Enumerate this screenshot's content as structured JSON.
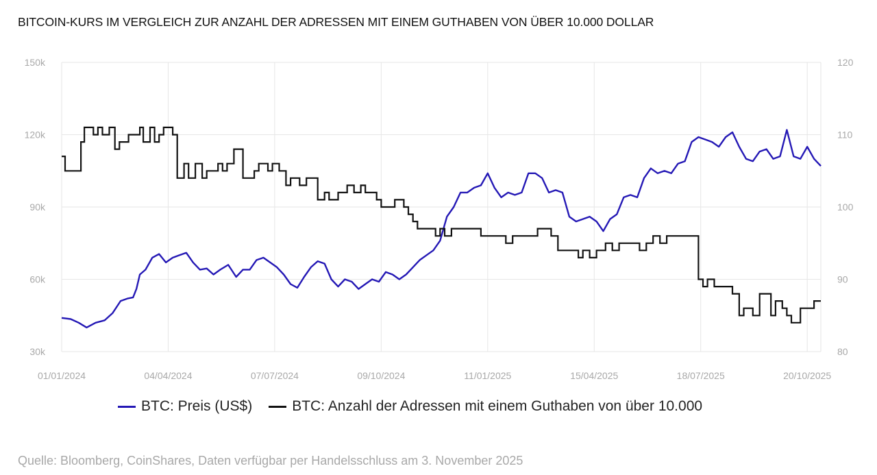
{
  "chart_data": {
    "type": "line",
    "title": "BITCOIN-KURS IM VERGLEICH ZUR ANZAHL DER ADRESSEN MIT EINEM GUTHABEN VON ÜBER 10.000 DOLLAR",
    "x_tick_labels": [
      "01/01/2024",
      "04/04/2024",
      "07/07/2024",
      "09/10/2024",
      "11/01/2025",
      "15/04/2025",
      "18/07/2025",
      "20/10/2025"
    ],
    "x_range_days": [
      0,
      670
    ],
    "x_tick_days": [
      0,
      94,
      188,
      282,
      376,
      470,
      564,
      658
    ],
    "y_left": {
      "min": 30000,
      "max": 150000,
      "ticks": [
        30000,
        60000,
        90000,
        120000,
        150000
      ],
      "tick_labels": [
        "30k",
        "60k",
        "90k",
        "120k",
        "150k"
      ]
    },
    "y_right": {
      "min": 80,
      "max": 120,
      "ticks": [
        80,
        90,
        100,
        110,
        120
      ],
      "tick_labels": [
        "80",
        "90",
        "100",
        "110",
        "120"
      ]
    },
    "grid": true,
    "series": [
      {
        "name": "BTC: Preis (US$)",
        "axis": "left",
        "color": "#2418b5",
        "x": [
          0,
          8,
          15,
          22,
          30,
          38,
          45,
          52,
          58,
          63,
          66,
          69,
          74,
          80,
          86,
          92,
          98,
          104,
          110,
          116,
          122,
          128,
          134,
          140,
          147,
          154,
          160,
          166,
          172,
          178,
          184,
          190,
          196,
          202,
          208,
          214,
          220,
          226,
          232,
          238,
          244,
          250,
          256,
          262,
          268,
          274,
          280,
          286,
          292,
          298,
          304,
          310,
          316,
          322,
          328,
          334,
          340,
          346,
          352,
          358,
          364,
          370,
          376,
          382,
          388,
          394,
          400,
          406,
          412,
          418,
          424,
          430,
          436,
          442,
          448,
          454,
          460,
          466,
          472,
          478,
          484,
          490,
          496,
          502,
          508,
          514,
          520,
          526,
          532,
          538,
          544,
          550,
          556,
          562,
          568,
          574,
          580,
          586,
          592,
          598,
          604,
          610,
          616,
          622,
          628,
          634,
          640,
          646,
          652,
          658,
          664,
          670
        ],
        "values": [
          44000,
          43500,
          42000,
          40000,
          42000,
          43000,
          46000,
          51000,
          52000,
          52500,
          56000,
          62000,
          64000,
          69000,
          70500,
          67000,
          69000,
          70000,
          71000,
          67000,
          64000,
          64500,
          62000,
          64000,
          66000,
          61000,
          64000,
          64000,
          68000,
          69000,
          67000,
          65000,
          62000,
          58000,
          56500,
          61000,
          65000,
          67500,
          66500,
          60000,
          57000,
          60000,
          59000,
          56000,
          58000,
          60000,
          59000,
          63000,
          62000,
          60000,
          62000,
          65000,
          68000,
          70000,
          72000,
          76000,
          86000,
          90000,
          96000,
          96000,
          98000,
          99000,
          104000,
          98000,
          94000,
          96000,
          95000,
          96000,
          104000,
          104000,
          102000,
          96000,
          97000,
          96000,
          86000,
          84000,
          85000,
          86000,
          84000,
          80000,
          85000,
          87000,
          94000,
          95000,
          94000,
          102000,
          106000,
          104000,
          105000,
          104000,
          108000,
          109000,
          117000,
          119000,
          118000,
          117000,
          115000,
          119000,
          121000,
          115000,
          110000,
          109000,
          113000,
          114000,
          110000,
          111000,
          122000,
          111000,
          110000,
          115000,
          110000,
          107000
        ]
      },
      {
        "name": "BTC: Anzahl der Adressen mit einem Guthaben von über 10.000",
        "axis": "right",
        "color": "#111111",
        "x": [
          0,
          3,
          14,
          17,
          20,
          28,
          32,
          36,
          42,
          47,
          51,
          55,
          59,
          65,
          69,
          72,
          78,
          82,
          86,
          90,
          94,
          98,
          102,
          108,
          112,
          118,
          124,
          128,
          132,
          138,
          142,
          146,
          150,
          152,
          160,
          164,
          170,
          174,
          178,
          182,
          186,
          192,
          198,
          202,
          208,
          210,
          216,
          222,
          226,
          232,
          236,
          240,
          244,
          252,
          258,
          264,
          268,
          272,
          278,
          282,
          286,
          290,
          294,
          298,
          302,
          306,
          310,
          314,
          318,
          324,
          330,
          334,
          338,
          344,
          350,
          360,
          366,
          370,
          376,
          382,
          388,
          392,
          398,
          404,
          410,
          416,
          420,
          426,
          432,
          438,
          444,
          450,
          456,
          460,
          466,
          472,
          476,
          480,
          486,
          492,
          498,
          504,
          510,
          516,
          522,
          528,
          534,
          540,
          546,
          552,
          556,
          562,
          566,
          570,
          576,
          582,
          586,
          592,
          598,
          602,
          606,
          610,
          616,
          620,
          626,
          630,
          636,
          640,
          644,
          648,
          652,
          656,
          660,
          664,
          670
        ],
        "values": [
          107,
          105,
          105,
          109,
          111,
          110,
          111,
          110,
          111,
          108,
          109,
          109,
          110,
          110,
          111,
          109,
          111,
          109,
          110,
          111,
          111,
          110,
          104,
          106,
          104,
          106,
          104,
          105,
          105,
          106,
          105,
          106,
          106,
          108,
          104,
          104,
          105,
          106,
          106,
          105,
          106,
          105,
          103,
          104,
          104,
          103,
          104,
          104,
          101,
          102,
          101,
          101,
          102,
          103,
          102,
          103,
          102,
          102,
          101,
          100,
          100,
          100,
          101,
          101,
          100,
          99,
          98,
          97,
          97,
          97,
          96,
          97,
          96,
          97,
          97,
          97,
          97,
          96,
          96,
          96,
          96,
          95,
          96,
          96,
          96,
          96,
          97,
          97,
          96,
          94,
          94,
          94,
          93,
          94,
          93,
          94,
          94,
          95,
          94,
          95,
          95,
          95,
          94,
          95,
          96,
          95,
          96,
          96,
          96,
          96,
          96,
          90,
          89,
          90,
          89,
          89,
          89,
          88,
          85,
          86,
          86,
          85,
          88,
          88,
          85,
          87,
          86,
          85,
          84,
          84,
          86,
          86,
          86,
          87,
          87
        ]
      }
    ]
  },
  "legend": {
    "items": [
      {
        "label": "BTC: Preis (US$)",
        "color": "#2418b5"
      },
      {
        "label": "BTC: Anzahl der Adressen mit einem Guthaben von über 10.000",
        "color": "#111111"
      }
    ]
  },
  "source_note": "Quelle: Bloomberg, CoinShares, Daten verfügbar per Handelsschluss am 3. November 2025"
}
